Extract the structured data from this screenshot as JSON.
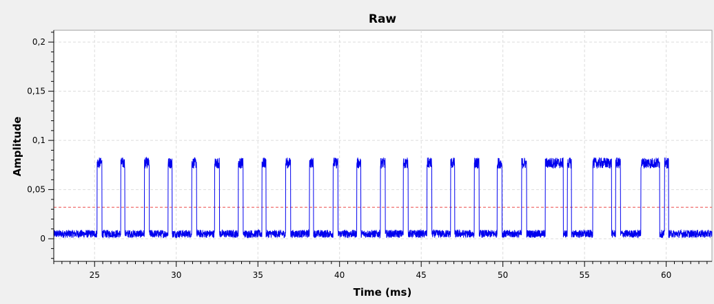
{
  "chart_data": {
    "type": "line",
    "title": "Raw",
    "xlabel": "Time (ms)",
    "ylabel": "Amplitude",
    "xlim": [
      22.5,
      62.8
    ],
    "ylim": [
      -0.023,
      0.212
    ],
    "grid": true,
    "x_ticks": [
      25,
      30,
      35,
      40,
      45,
      50,
      55,
      60
    ],
    "x_tick_labels": [
      "25",
      "30",
      "35",
      "40",
      "45",
      "50",
      "55",
      "60"
    ],
    "y_ticks": [
      0,
      0.05,
      0.1,
      0.15,
      0.2
    ],
    "y_tick_labels": [
      "0",
      "0,05",
      "0,1",
      "0,15",
      "0,2"
    ],
    "colors": {
      "signal": "#0000ee",
      "threshold": "#f07070",
      "grid": "#dcdcdc",
      "background": "#ffffff"
    },
    "series": [
      {
        "low_level": 0.005,
        "high_level": 0.077,
        "noise_amplitude": 0.004,
        "pulses": [
          [
            25.15,
            25.45
          ],
          [
            26.6,
            26.85
          ],
          [
            28.05,
            28.35
          ],
          [
            29.5,
            29.75
          ],
          [
            30.95,
            31.25
          ],
          [
            32.35,
            32.65
          ],
          [
            33.8,
            34.1
          ],
          [
            35.25,
            35.5
          ],
          [
            36.7,
            37.0
          ],
          [
            38.15,
            38.4
          ],
          [
            39.6,
            39.9
          ],
          [
            41.05,
            41.3
          ],
          [
            42.5,
            42.8
          ],
          [
            43.9,
            44.2
          ],
          [
            45.35,
            45.65
          ],
          [
            46.8,
            47.05
          ],
          [
            48.25,
            48.55
          ],
          [
            49.65,
            49.95
          ],
          [
            51.15,
            51.45
          ],
          [
            52.6,
            53.7
          ],
          [
            53.95,
            54.2
          ],
          [
            55.5,
            56.65
          ],
          [
            56.9,
            57.2
          ],
          [
            58.45,
            59.6
          ],
          [
            59.9,
            60.15
          ]
        ]
      },
      {
        "y_value": 0.032
      }
    ]
  }
}
